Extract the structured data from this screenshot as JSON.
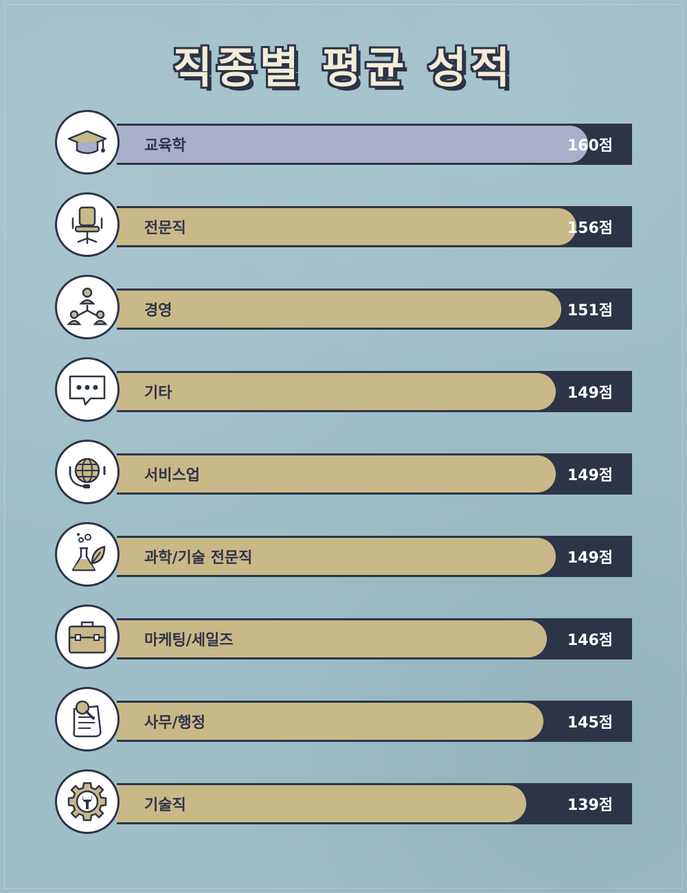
{
  "title": "직종별 평균 성적",
  "colors": {
    "background": "#9fbfc8",
    "track": "#2d3447",
    "bar": "#c9b888",
    "bar_highlight": "#a9afc8",
    "icon_circle": "#ffffff"
  },
  "chart_data": {
    "type": "bar",
    "orientation": "horizontal",
    "title": "직종별 평균 성적",
    "unit": "점",
    "categories": [
      "교육학",
      "전문직",
      "경영",
      "기타",
      "서비스업",
      "과학/기술 전문직",
      "마케팅/세일즈",
      "사무/행정",
      "기술직"
    ],
    "values": [
      160,
      156,
      151,
      149,
      149,
      149,
      146,
      145,
      139
    ],
    "value_labels": [
      "160점",
      "156점",
      "151점",
      "149점",
      "149점",
      "149점",
      "146점",
      "145점",
      "139점"
    ],
    "icons": [
      "graduation-cap-icon",
      "office-chair-icon",
      "org-chart-icon",
      "speech-bubble-icon",
      "globe-headset-icon",
      "flask-leaf-icon",
      "briefcase-icon",
      "pushpin-paper-icon",
      "gear-wrench-icon"
    ]
  }
}
